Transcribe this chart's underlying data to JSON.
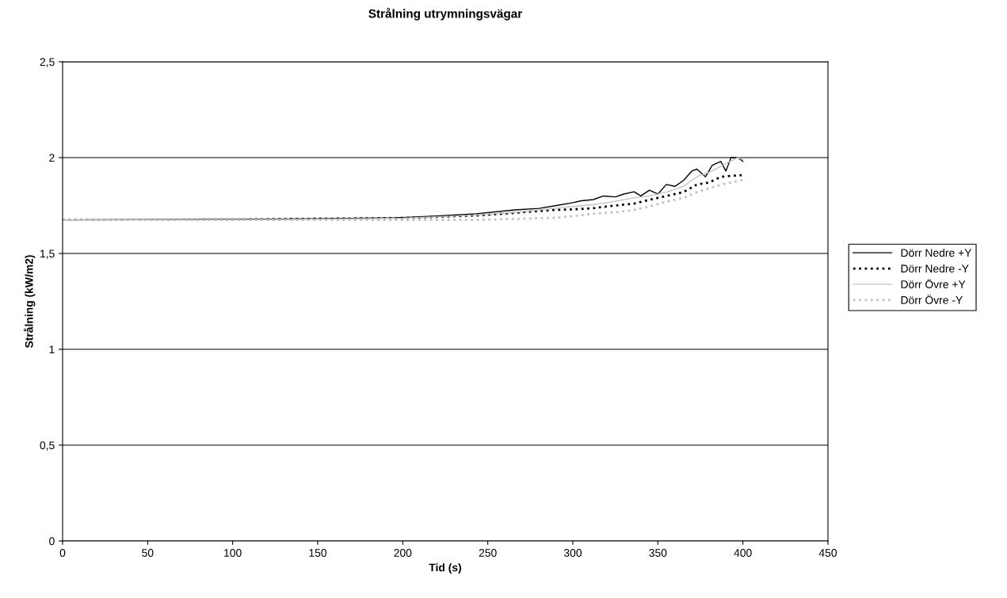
{
  "chart_data": {
    "type": "line",
    "title": "Strålning utrymningsvägar",
    "xlabel": "Tid (s)",
    "ylabel": "Strålning (kW/m2)",
    "xlim": [
      0,
      450
    ],
    "xticks": [
      0,
      50,
      100,
      150,
      200,
      250,
      300,
      350,
      400,
      450
    ],
    "ylim": [
      0,
      2.5
    ],
    "yticks": [
      0,
      {
        "value": 0.5,
        "label": "0,5"
      },
      1,
      {
        "value": 1.5,
        "label": "1,5"
      },
      2,
      {
        "value": 2.5,
        "label": "2,5"
      }
    ],
    "grid": "y",
    "legend": "right",
    "marker": "none",
    "series": [
      {
        "name": "Dörr Nedre +Y",
        "color": "#000000",
        "line_style": "solid",
        "x": [
          0,
          100,
          150,
          196,
          220,
          243,
          266,
          280,
          289,
          300,
          305,
          312,
          318,
          325,
          330,
          336,
          340,
          345,
          350,
          355,
          360,
          365,
          370,
          373,
          378,
          382,
          387,
          390,
          393,
          397,
          400
        ],
        "values": [
          1.675,
          1.678,
          1.681,
          1.686,
          1.695,
          1.707,
          1.727,
          1.735,
          1.748,
          1.765,
          1.775,
          1.781,
          1.8,
          1.795,
          1.81,
          1.822,
          1.8,
          1.83,
          1.81,
          1.86,
          1.85,
          1.88,
          1.93,
          1.94,
          1.9,
          1.96,
          1.98,
          1.93,
          2.0,
          2.0,
          1.98
        ]
      },
      {
        "name": "Dörr Nedre -Y",
        "color": "#000000",
        "line_style": "dotted",
        "x": [
          0,
          100,
          200,
          243,
          266,
          289,
          300,
          312,
          320,
          336,
          345,
          355,
          365,
          373,
          380,
          387,
          393,
          400
        ],
        "values": [
          1.675,
          1.677,
          1.685,
          1.698,
          1.712,
          1.727,
          1.73,
          1.736,
          1.745,
          1.76,
          1.78,
          1.8,
          1.82,
          1.86,
          1.87,
          1.9,
          1.905,
          1.909
        ]
      },
      {
        "name": "Dörr Övre +Y",
        "color": "#c0c0c0",
        "line_style": "solid",
        "x": [
          0,
          100,
          150,
          200,
          243,
          266,
          289,
          300,
          312,
          320,
          336,
          345,
          355,
          365,
          373,
          382,
          390,
          397,
          400
        ],
        "values": [
          1.675,
          1.676,
          1.679,
          1.684,
          1.7,
          1.715,
          1.735,
          1.745,
          1.755,
          1.765,
          1.79,
          1.8,
          1.82,
          1.85,
          1.9,
          1.93,
          1.97,
          2.0,
          1.99
        ]
      },
      {
        "name": "Dörr Övre -Y",
        "color": "#c0c0c0",
        "line_style": "dotted",
        "x": [
          0,
          150,
          243,
          266,
          289,
          300,
          312,
          325,
          336,
          345,
          355,
          365,
          373,
          380,
          390,
          400
        ],
        "values": [
          1.675,
          1.675,
          1.675,
          1.68,
          1.686,
          1.695,
          1.707,
          1.715,
          1.727,
          1.745,
          1.77,
          1.79,
          1.82,
          1.84,
          1.865,
          1.884
        ]
      }
    ]
  }
}
